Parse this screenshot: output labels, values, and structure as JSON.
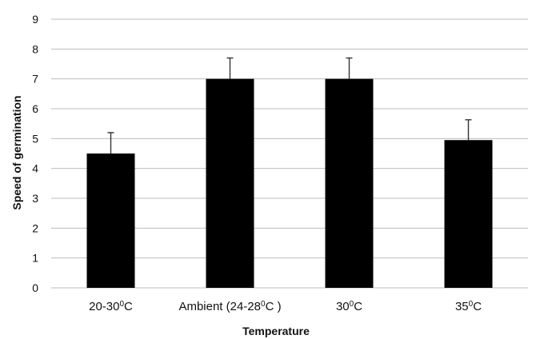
{
  "chart_data": {
    "type": "bar",
    "categories": [
      {
        "base": "20-30",
        "sup": "0",
        "suffix": "C"
      },
      {
        "base": "Ambient (24-28",
        "sup": "0",
        "suffix": "C )"
      },
      {
        "base": "30",
        "sup": "0",
        "suffix": "C"
      },
      {
        "base": "35",
        "sup": "0",
        "suffix": "C"
      }
    ],
    "values": [
      4.5,
      7.0,
      7.0,
      4.95
    ],
    "errors": [
      0.7,
      0.7,
      0.7,
      0.68
    ],
    "xlabel": "Temperature",
    "ylabel": "Speed of germination",
    "ylim": [
      0,
      9
    ],
    "yticks": [
      0,
      1,
      2,
      3,
      4,
      5,
      6,
      7,
      8,
      9
    ],
    "grid": true,
    "legend": "none",
    "colors": {
      "bar": "#000000",
      "grid": "#bdbdbd",
      "error_bar": "#333333"
    }
  }
}
